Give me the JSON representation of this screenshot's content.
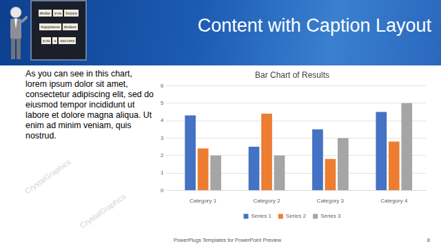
{
  "slide": {
    "title": "Content with Caption Layout",
    "caption": "As you can see in this chart, lorem ipsum dolor sit amet, consectetur adipiscing elit, sed do eiusmod tempor incididunt ut labore et dolore magna aliqua. Ut enim ad minim veniam, quis nostrud.",
    "icon_text": [
      [
        "make",
        "you",
        "happy"
      ],
      [
        "happiness",
        "makes"
      ],
      [
        "you",
        "a",
        "success"
      ]
    ],
    "footer": "PowerPlugs Templates for PowerPoint Preview",
    "page": 8,
    "watermark": "CrystalGraphics"
  },
  "chart_data": {
    "type": "bar",
    "title": "Bar Chart of Results",
    "categories": [
      "Category 1",
      "Category 2",
      "Category 3",
      "Category 4"
    ],
    "series": [
      {
        "name": "Series 1",
        "color": "#4472c4",
        "values": [
          4.3,
          2.5,
          3.5,
          4.5
        ]
      },
      {
        "name": "Series 2",
        "color": "#ed7d31",
        "values": [
          2.4,
          4.4,
          1.8,
          2.8
        ]
      },
      {
        "name": "Series 3",
        "color": "#a5a5a5",
        "values": [
          2,
          2,
          3,
          5
        ]
      }
    ],
    "ylim": [
      0,
      6
    ],
    "yticks": [
      0,
      1,
      2,
      3,
      4,
      5,
      6
    ],
    "grid": true,
    "legend": "bottom"
  }
}
